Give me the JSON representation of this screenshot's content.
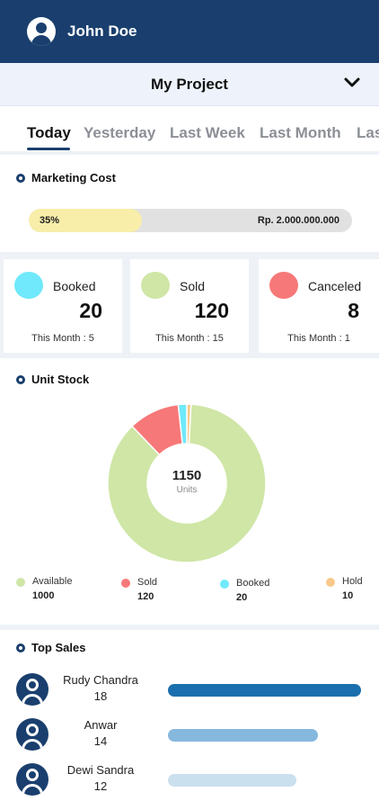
{
  "header": {
    "user_name": "John Doe",
    "avatar_icon": "user-circle-icon"
  },
  "project": {
    "title": "My Project",
    "dropdown_icon": "chevron-down-icon"
  },
  "tabs": [
    {
      "label": "Today",
      "active": true
    },
    {
      "label": "Yesterday",
      "active": false
    },
    {
      "label": "Last Week",
      "active": false
    },
    {
      "label": "Last Month",
      "active": false
    },
    {
      "label": "Las",
      "active": false
    }
  ],
  "marketing_cost": {
    "title": "Marketing Cost",
    "progress_percent": 35,
    "progress_label": "35%",
    "total_label": "Rp. 2.000.000.000",
    "fill_color": "#f8eeaa",
    "track_color": "#e1e1e1"
  },
  "stats": [
    {
      "label": "Booked",
      "value": "20",
      "month_label": "This Month : 5",
      "color": "#6fe9fb"
    },
    {
      "label": "Sold",
      "value": "120",
      "month_label": "This Month : 15",
      "color": "#cfe6a6"
    },
    {
      "label": "Canceled",
      "value": "8",
      "month_label": "This Month : 1",
      "color": "#f77878"
    }
  ],
  "unit_stock": {
    "title": "Unit Stock",
    "total": "1150",
    "total_unit": "Units",
    "legend": [
      {
        "label": "Available",
        "value": "1000",
        "color": "#cfe6a6"
      },
      {
        "label": "Sold",
        "value": "120",
        "color": "#f77878"
      },
      {
        "label": "Booked",
        "value": "20",
        "color": "#6fe9fb"
      },
      {
        "label": "Hold",
        "value": "10",
        "color": "#f8c98a"
      }
    ]
  },
  "top_sales": {
    "title": "Top Sales",
    "max_value": 18,
    "people": [
      {
        "name": "Rudy Chandra",
        "value": "18",
        "amount": 18,
        "color": "#1b6fae"
      },
      {
        "name": "Anwar",
        "value": "14",
        "amount": 14,
        "color": "#86b8de"
      },
      {
        "name": "Dewi Sandra",
        "value": "12",
        "amount": 12,
        "color": "#cbe0ef"
      }
    ]
  }
}
